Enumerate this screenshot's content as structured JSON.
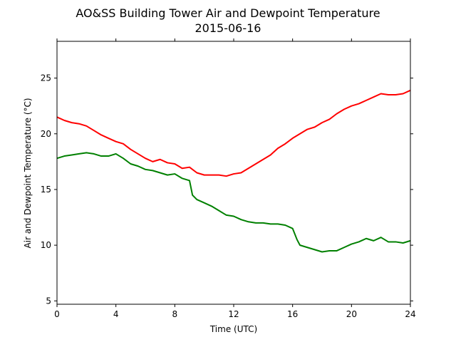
{
  "chart_data": {
    "type": "line",
    "title": "AO&SS Building Tower Air and Dewpoint Temperature",
    "subtitle": "2015-06-16",
    "xlabel": "Time (UTC)",
    "ylabel": "Air and Dewpoint Temperature (°C)",
    "xlim": [
      0,
      24
    ],
    "ylim": [
      4.7,
      28.3
    ],
    "xticks": [
      "0",
      "4",
      "8",
      "12",
      "16",
      "20",
      "24"
    ],
    "yticks": [
      "5",
      "10",
      "15",
      "20",
      "25"
    ],
    "grid": false,
    "legend": "none",
    "series": [
      {
        "color": "#ff0000",
        "x": [
          0,
          0.5,
          1,
          1.5,
          2,
          2.5,
          3,
          3.5,
          4,
          4.5,
          5,
          5.5,
          6,
          6.5,
          7,
          7.5,
          8,
          8.5,
          9,
          9.5,
          10,
          10.5,
          11,
          11.5,
          12,
          12.5,
          13,
          13.5,
          14,
          14.5,
          15,
          15.5,
          16,
          16.5,
          17,
          17.5,
          18,
          18.5,
          19,
          19.5,
          20,
          20.5,
          21,
          21.5,
          22,
          22.5,
          23,
          23.5,
          24
        ],
        "y": [
          21.5,
          21.2,
          21.0,
          20.9,
          20.7,
          20.3,
          19.9,
          19.6,
          19.3,
          19.1,
          18.6,
          18.2,
          17.8,
          17.5,
          17.7,
          17.4,
          17.3,
          16.9,
          17.0,
          16.5,
          16.3,
          16.3,
          16.3,
          16.2,
          16.4,
          16.5,
          16.9,
          17.3,
          17.7,
          18.1,
          18.7,
          19.1,
          19.6,
          20.0,
          20.4,
          20.6,
          21.0,
          21.3,
          21.8,
          22.2,
          22.5,
          22.7,
          23.0,
          23.3,
          23.6,
          23.5,
          23.5,
          23.6,
          23.9
        ]
      },
      {
        "color": "#008000",
        "x": [
          0,
          0.5,
          1,
          1.5,
          2,
          2.5,
          3,
          3.5,
          4,
          4.5,
          5,
          5.5,
          6,
          6.5,
          7,
          7.5,
          8,
          8.5,
          9,
          9.2,
          9.5,
          10,
          10.5,
          11,
          11.5,
          12,
          12.5,
          13,
          13.5,
          14,
          14.5,
          15,
          15.5,
          16,
          16.3,
          16.5,
          17,
          17.5,
          18,
          18.5,
          19,
          19.5,
          20,
          20.5,
          21,
          21.5,
          22,
          22.5,
          23,
          23.5,
          24
        ],
        "y": [
          17.8,
          18.0,
          18.1,
          18.2,
          18.3,
          18.2,
          18.0,
          18.0,
          18.2,
          17.8,
          17.3,
          17.1,
          16.8,
          16.7,
          16.5,
          16.3,
          16.4,
          16.0,
          15.8,
          14.5,
          14.1,
          13.8,
          13.5,
          13.1,
          12.7,
          12.6,
          12.3,
          12.1,
          12.0,
          12.0,
          11.9,
          11.9,
          11.8,
          11.5,
          10.5,
          10.0,
          9.8,
          9.6,
          9.4,
          9.5,
          9.5,
          9.8,
          10.1,
          10.3,
          10.6,
          10.4,
          10.7,
          10.3,
          10.3,
          10.2,
          10.4
        ]
      }
    ]
  }
}
